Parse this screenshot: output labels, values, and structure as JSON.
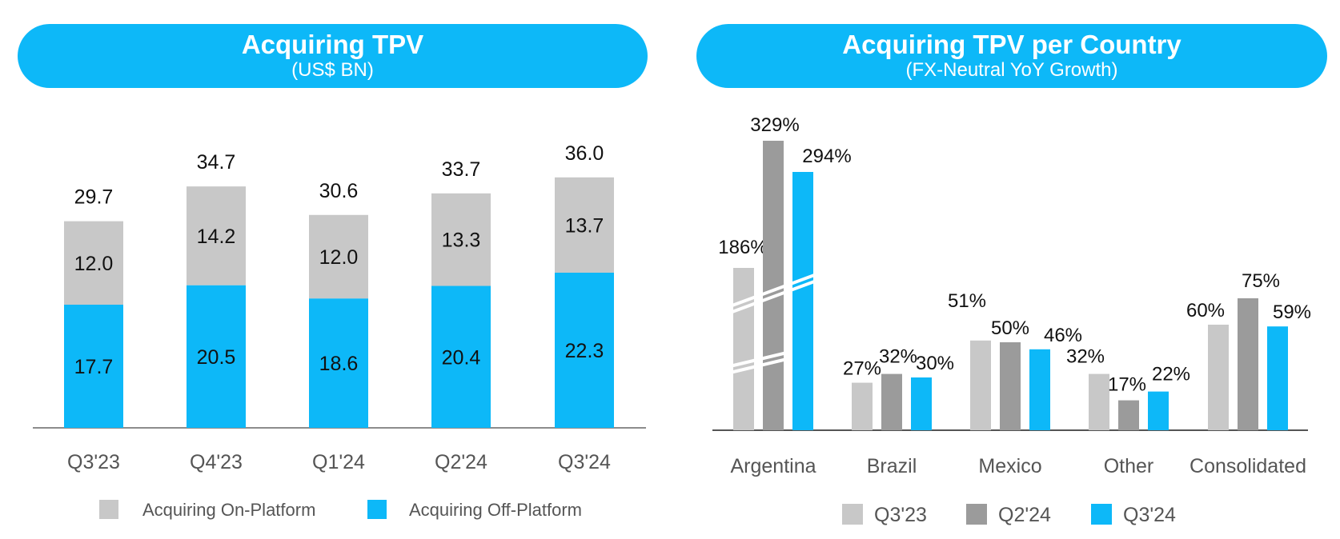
{
  "chart_data": [
    {
      "type": "bar",
      "stacked": true,
      "title": "Acquiring TPV",
      "subtitle": "(US$ BN)",
      "categories": [
        "Q3'23",
        "Q4'23",
        "Q1'24",
        "Q2'24",
        "Q3'24"
      ],
      "series": [
        {
          "name": "Acquiring Off-Platform",
          "values": [
            17.7,
            20.5,
            18.6,
            20.4,
            22.3
          ],
          "color": "#0DB8F8"
        },
        {
          "name": "Acquiring On-Platform",
          "values": [
            12.0,
            14.2,
            12.0,
            13.3,
            13.7
          ],
          "color": "#C8C8C8"
        }
      ],
      "totals": [
        29.7,
        34.7,
        30.6,
        33.7,
        36.0
      ],
      "labels": {
        "off": [
          "17.7",
          "20.5",
          "18.6",
          "20.4",
          "22.3"
        ],
        "on": [
          "12.0",
          "14.2",
          "12.0",
          "13.3",
          "13.7"
        ],
        "totals": [
          "29.7",
          "34.7",
          "30.6",
          "33.7",
          "36.0"
        ]
      },
      "legend": [
        {
          "name": "Acquiring On-Platform",
          "color": "#C8C8C8"
        },
        {
          "name": "Acquiring Off-Platform",
          "color": "#0DB8F8"
        }
      ],
      "legend_position": "bottom",
      "ylim": [
        0,
        40
      ],
      "grid": false
    },
    {
      "type": "bar",
      "title": "Acquiring TPV per Country",
      "subtitle": "(FX-Neutral YoY Growth)",
      "categories": [
        "Argentina",
        "Brazil",
        "Mexico",
        "Other",
        "Consolidated"
      ],
      "series": [
        {
          "name": "Q3'23",
          "values": [
            186,
            27,
            51,
            32,
            60
          ],
          "labels": [
            "186%",
            "27%",
            "51%",
            "32%",
            "60%"
          ],
          "color": "#C8C8C8"
        },
        {
          "name": "Q2'24",
          "values": [
            329,
            32,
            50,
            17,
            75
          ],
          "labels": [
            "329%",
            "32%",
            "50%",
            "17%",
            "75%"
          ],
          "color": "#9B9B9B"
        },
        {
          "name": "Q3'24",
          "values": [
            294,
            30,
            46,
            22,
            59
          ],
          "labels": [
            "294%",
            "30%",
            "46%",
            "22%",
            "59%"
          ],
          "color": "#0DB8F8"
        }
      ],
      "axis_break": {
        "category": "Argentina"
      },
      "legend_position": "bottom",
      "grid": false
    }
  ]
}
